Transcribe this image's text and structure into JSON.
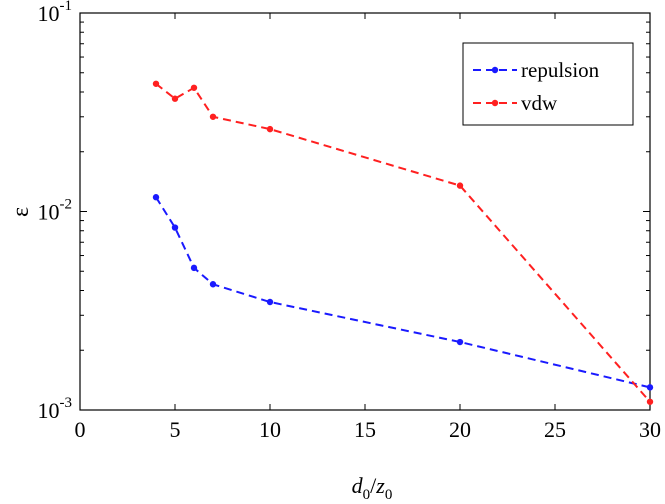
{
  "chart_data": {
    "type": "line",
    "title": "",
    "xlabel": "d0/z0",
    "xlabel_parts": {
      "d": "d",
      "d_sub": "0",
      "z": "z",
      "z_sub": "0",
      "sep": "/"
    },
    "ylabel": "ε",
    "xlim": [
      0,
      30
    ],
    "ylim": [
      0.001,
      0.1
    ],
    "yscale": "log",
    "grid": false,
    "legend_position": "top-right",
    "x_ticks": [
      0,
      5,
      10,
      15,
      20,
      25,
      30
    ],
    "x_tick_labels": [
      "0",
      "5",
      "10",
      "15",
      "20",
      "25",
      "30"
    ],
    "y_ticks": [
      {
        "value": 0.1,
        "base": "10",
        "exp": "-1"
      },
      {
        "value": 0.01,
        "base": "10",
        "exp": "-2"
      },
      {
        "value": 0.001,
        "base": "10",
        "exp": "-3"
      }
    ],
    "series": [
      {
        "name": "repulsion",
        "color": "#1a1aff",
        "line_style": "dashed",
        "marker": "dot",
        "x": [
          4,
          5,
          6,
          7,
          10,
          20,
          30
        ],
        "y": [
          0.0118,
          0.0083,
          0.0052,
          0.0043,
          0.0035,
          0.0022,
          0.0013
        ]
      },
      {
        "name": "vdw",
        "color": "#ff2020",
        "line_style": "dashed",
        "marker": "dot",
        "x": [
          4,
          5,
          6,
          7,
          10,
          20,
          30
        ],
        "y": [
          0.044,
          0.037,
          0.042,
          0.03,
          0.026,
          0.0135,
          0.0011
        ]
      }
    ]
  }
}
